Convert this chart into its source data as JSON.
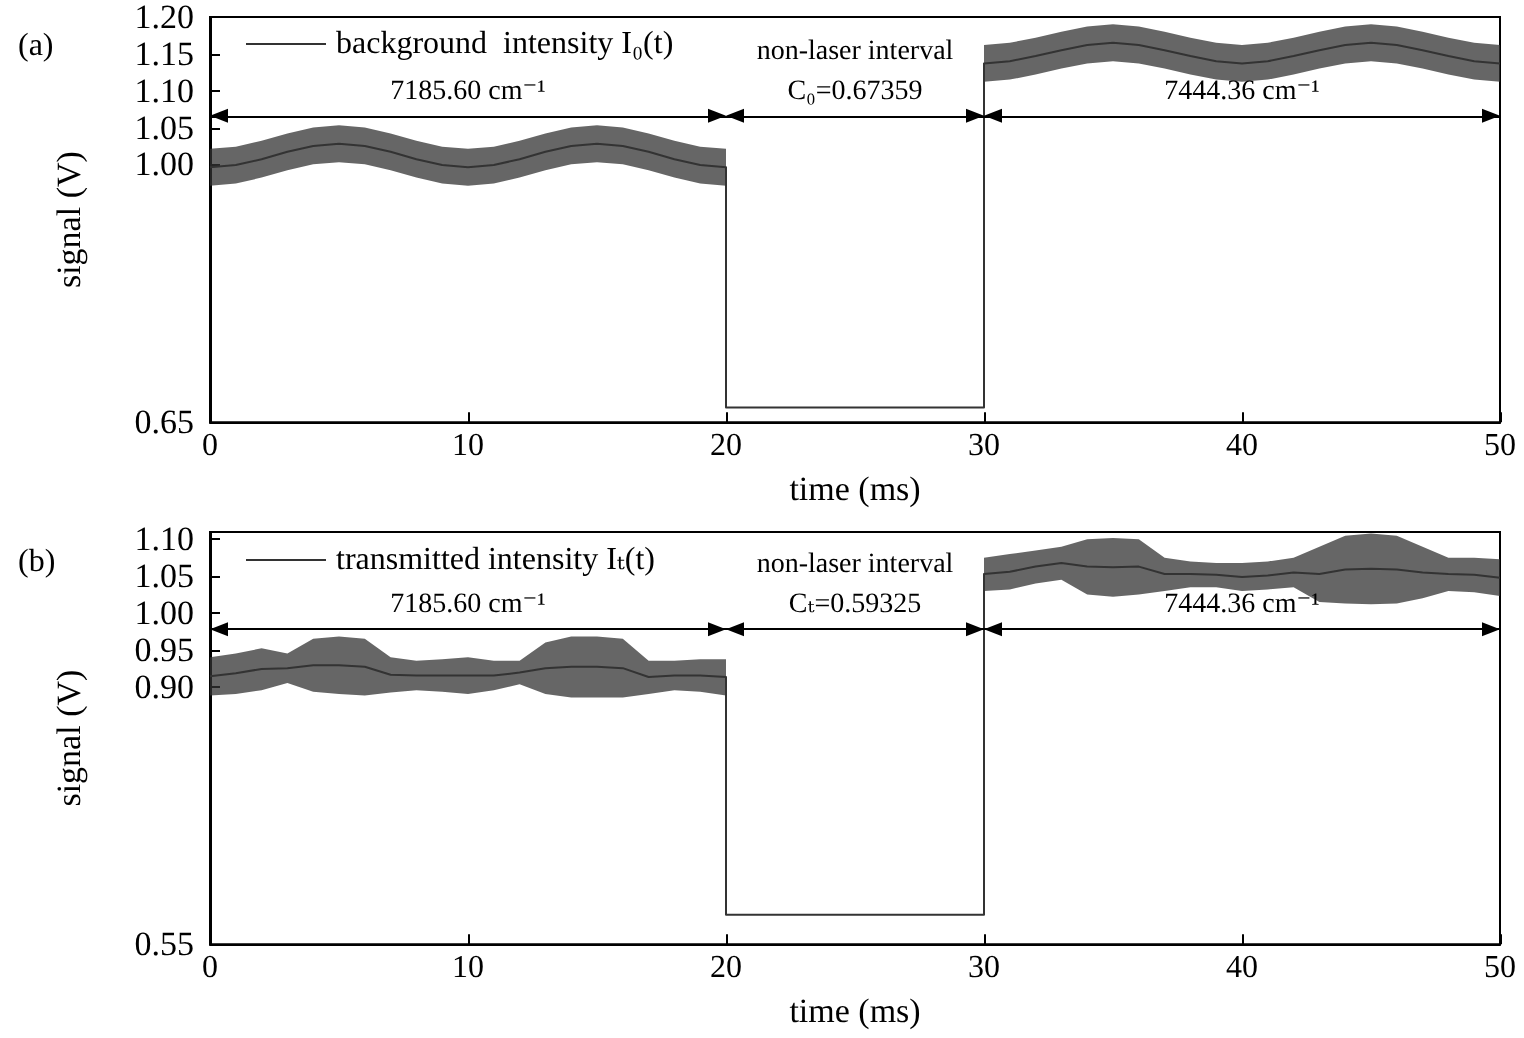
{
  "chart_data": [
    {
      "type": "line",
      "title": "(a)",
      "xlabel": "time (ms)",
      "ylabel": "signal (V)",
      "legend": "top left",
      "xlim": [
        0,
        50
      ],
      "xticks": [
        0,
        10,
        20,
        30,
        40,
        50
      ],
      "ylim": [
        0.65,
        1.2
      ],
      "yticks": [
        0.65,
        {
          "value": 1,
          "label": "1.00"
        },
        1.05,
        {
          "value": 1.1,
          "label": "1.10"
        },
        1.15,
        {
          "value": 1.2,
          "label": "1.20"
        }
      ],
      "x": [
        0,
        1,
        2,
        3,
        4,
        5,
        6,
        7,
        8,
        9,
        10,
        11,
        12,
        13,
        14,
        15,
        16,
        17,
        18,
        19,
        20,
        20,
        30,
        30,
        31,
        32,
        33,
        34,
        35,
        36,
        37,
        38,
        39,
        40,
        41,
        42,
        43,
        44,
        45,
        46,
        47,
        48,
        49,
        50
      ],
      "series": [
        {
          "name": "background  intensity I₀(t)",
          "color": "#333333",
          "values": [
            0.996,
            0.999,
            1.007,
            1.017,
            1.025,
            1.028,
            1.025,
            1.017,
            1.007,
            0.999,
            0.996,
            0.999,
            1.007,
            1.017,
            1.025,
            1.028,
            1.025,
            1.017,
            1.007,
            0.999,
            0.996,
            0.67,
            0.67,
            1.137,
            1.14,
            1.147,
            1.155,
            1.162,
            1.165,
            1.162,
            1.155,
            1.147,
            1.14,
            1.137,
            1.14,
            1.147,
            1.155,
            1.162,
            1.165,
            1.162,
            1.155,
            1.147,
            1.14,
            1.137
          ],
          "lower": [
            0.971,
            0.974,
            0.982,
            0.992,
            1.0,
            1.003,
            1.0,
            0.992,
            0.982,
            0.974,
            0.971,
            0.974,
            0.982,
            0.992,
            1.0,
            1.003,
            1.0,
            0.992,
            0.982,
            0.974,
            0.971,
            0.67,
            0.67,
            1.112,
            1.115,
            1.122,
            1.13,
            1.137,
            1.14,
            1.137,
            1.13,
            1.122,
            1.115,
            1.112,
            1.115,
            1.122,
            1.13,
            1.137,
            1.14,
            1.137,
            1.13,
            1.122,
            1.115,
            1.112
          ],
          "upper": [
            1.021,
            1.024,
            1.032,
            1.042,
            1.05,
            1.053,
            1.05,
            1.042,
            1.032,
            1.024,
            1.021,
            1.024,
            1.032,
            1.042,
            1.05,
            1.053,
            1.05,
            1.042,
            1.032,
            1.024,
            1.021,
            0.67,
            0.67,
            1.162,
            1.165,
            1.172,
            1.18,
            1.187,
            1.19,
            1.187,
            1.18,
            1.172,
            1.165,
            1.162,
            1.165,
            1.172,
            1.18,
            1.187,
            1.19,
            1.187,
            1.18,
            1.172,
            1.165,
            1.162
          ]
        }
      ],
      "ref_lines": [
        {
          "axis": "y",
          "value": 1.066
        }
      ],
      "annotations": [
        {
          "text": "7185.60 cm⁻¹",
          "x": 10,
          "y": 1.066
        },
        {
          "text": "non-laser interval\nC₀=0.67359",
          "x": 25,
          "y": 1.066
        },
        {
          "text": "7444.36 cm⁻¹",
          "x": 40,
          "y": 1.066
        }
      ]
    },
    {
      "type": "line",
      "title": "(b)",
      "xlabel": "time (ms)",
      "ylabel": "signal (V)",
      "legend": "top left",
      "xlim": [
        0,
        50
      ],
      "xticks": [
        0,
        10,
        20,
        30,
        40,
        50
      ],
      "ylim": [
        0.55,
        1.11
      ],
      "yticks": [
        0.55,
        {
          "value": 0.9,
          "label": "0.90"
        },
        0.95,
        {
          "value": 1,
          "label": "1.00"
        },
        1.05,
        {
          "value": 1.1,
          "label": "1.10"
        }
      ],
      "x": [
        0,
        1,
        2,
        3,
        4,
        5,
        6,
        7,
        8,
        9,
        10,
        11,
        12,
        13,
        14,
        15,
        16,
        17,
        18,
        19,
        20,
        20,
        30,
        30,
        31,
        32,
        33,
        34,
        35,
        36,
        37,
        38,
        39,
        40,
        41,
        42,
        43,
        44,
        45,
        46,
        47,
        48,
        49,
        50
      ],
      "series": [
        {
          "name": "transmitted intensity Iₜ(t)",
          "color": "#333333",
          "values": [
            0.914,
            0.918,
            0.924,
            0.925,
            0.929,
            0.929,
            0.927,
            0.916,
            0.915,
            0.915,
            0.915,
            0.915,
            0.919,
            0.925,
            0.927,
            0.927,
            0.925,
            0.913,
            0.915,
            0.915,
            0.913,
            0.59,
            0.59,
            1.053,
            1.056,
            1.063,
            1.068,
            1.063,
            1.062,
            1.063,
            1.053,
            1.053,
            1.052,
            1.049,
            1.051,
            1.055,
            1.053,
            1.059,
            1.06,
            1.059,
            1.055,
            1.053,
            1.052,
            1.048
          ],
          "lower": [
            0.888,
            0.89,
            0.895,
            0.905,
            0.893,
            0.89,
            0.888,
            0.892,
            0.895,
            0.893,
            0.89,
            0.895,
            0.903,
            0.89,
            0.885,
            0.885,
            0.885,
            0.89,
            0.895,
            0.893,
            0.888,
            0.59,
            0.59,
            1.03,
            1.032,
            1.04,
            1.045,
            1.025,
            1.022,
            1.025,
            1.03,
            1.035,
            1.035,
            1.03,
            1.032,
            1.035,
            1.015,
            1.013,
            1.012,
            1.013,
            1.02,
            1.03,
            1.028,
            1.023
          ],
          "upper": [
            0.94,
            0.945,
            0.952,
            0.945,
            0.965,
            0.968,
            0.965,
            0.94,
            0.935,
            0.937,
            0.94,
            0.935,
            0.935,
            0.96,
            0.968,
            0.968,
            0.965,
            0.935,
            0.935,
            0.937,
            0.937,
            0.59,
            0.59,
            1.075,
            1.08,
            1.085,
            1.09,
            1.1,
            1.102,
            1.1,
            1.075,
            1.07,
            1.068,
            1.068,
            1.07,
            1.075,
            1.09,
            1.105,
            1.108,
            1.105,
            1.09,
            1.075,
            1.075,
            1.073
          ]
        }
      ],
      "ref_lines": [
        {
          "axis": "y",
          "value": 0.978
        }
      ],
      "annotations": [
        {
          "text": "7185.60 cm⁻¹",
          "x": 10,
          "y": 0.978
        },
        {
          "text": "non-laser interval\nCₜ=0.59325",
          "x": 25,
          "y": 0.978
        },
        {
          "text": "7444.36 cm⁻¹",
          "x": 40,
          "y": 0.978
        }
      ]
    }
  ]
}
